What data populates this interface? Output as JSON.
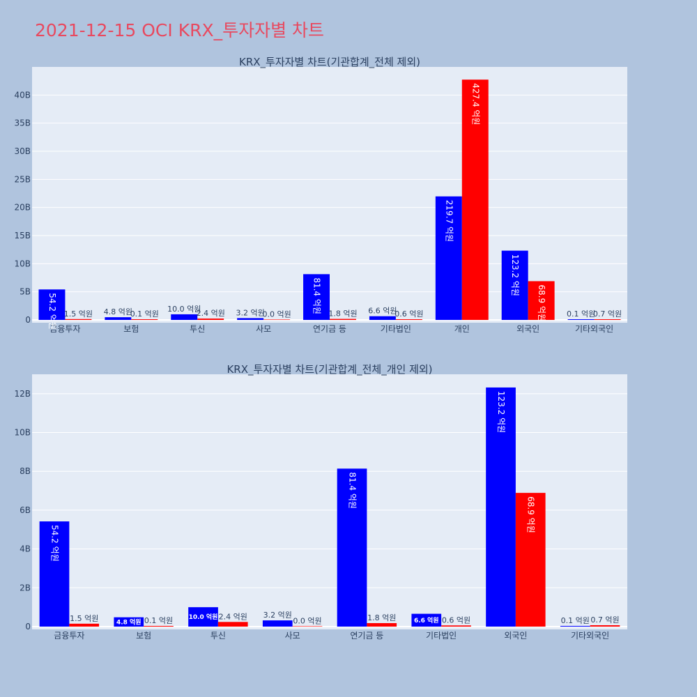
{
  "page_title": "2021-12-15 OCI KRX_투자자별 차트",
  "colors": {
    "background": "#b0c4de",
    "plot_bg": "#e5ecf6",
    "title": "#e8495f",
    "series_a": "#0000ff",
    "series_b": "#ff0000"
  },
  "chart_data": [
    {
      "type": "bar",
      "title": "KRX_투자자별 차트(기관합계_전체 제외)",
      "categories": [
        "금융투자",
        "보험",
        "투신",
        "사모",
        "연기금 등",
        "기타법인",
        "개인",
        "외국인",
        "기타외국인"
      ],
      "series": [
        {
          "values": [
            5420000000,
            480000000,
            1000000000,
            320000000,
            8140000000,
            660000000,
            21970000000,
            12320000000,
            10000000
          ],
          "labels": [
            "54.2 억원",
            "4.8 억원",
            "10.0 억원",
            "3.2 억원",
            "81.4 억원",
            "6.6 억원",
            "219.7 억원",
            "123.2 억원",
            "0.1 억원"
          ]
        },
        {
          "values": [
            150000000,
            10000000,
            240000000,
            0,
            180000000,
            60000000,
            42740000000,
            6890000000,
            70000000
          ],
          "labels": [
            "1.5 억원",
            "0.1 억원",
            "2.4 억원",
            "0.0 억원",
            "1.8 억원",
            "0.6 억원",
            "427.4 억원",
            "68.9 억원",
            "0.7 억원"
          ]
        }
      ],
      "yticks": [
        0,
        5000000000,
        10000000000,
        15000000000,
        20000000000,
        25000000000,
        30000000000,
        35000000000,
        40000000000
      ],
      "ytick_labels": [
        "0",
        "5B",
        "10B",
        "15B",
        "20B",
        "25B",
        "30B",
        "35B",
        "40B"
      ],
      "ylim": [
        0,
        45000000000
      ],
      "grid": true,
      "legend": "none"
    },
    {
      "type": "bar",
      "title": "KRX_투자자별 차트(기관합계_전체_개인 제외)",
      "categories": [
        "금융투자",
        "보험",
        "투신",
        "사모",
        "연기금 등",
        "기타법인",
        "외국인",
        "기타외국인"
      ],
      "series": [
        {
          "values": [
            5420000000,
            480000000,
            1000000000,
            320000000,
            8140000000,
            660000000,
            12320000000,
            10000000
          ],
          "labels": [
            "54.2 억원",
            "4.8 억원",
            "10.0 억원",
            "3.2 억원",
            "81.4 억원",
            "6.6 억원",
            "123.2 억원",
            "0.1 억원"
          ]
        },
        {
          "values": [
            150000000,
            10000000,
            240000000,
            0,
            180000000,
            60000000,
            6890000000,
            70000000
          ],
          "labels": [
            "1.5 억원",
            "0.1 억원",
            "2.4 억원",
            "0.0 억원",
            "1.8 억원",
            "0.6 억원",
            "68.9 억원",
            "0.7 억원"
          ]
        }
      ],
      "yticks": [
        0,
        2000000000,
        4000000000,
        6000000000,
        8000000000,
        10000000000,
        12000000000
      ],
      "ytick_labels": [
        "0",
        "2B",
        "4B",
        "6B",
        "8B",
        "10B",
        "12B"
      ],
      "ylim": [
        0,
        13000000000
      ],
      "grid": true,
      "legend": "none"
    }
  ]
}
